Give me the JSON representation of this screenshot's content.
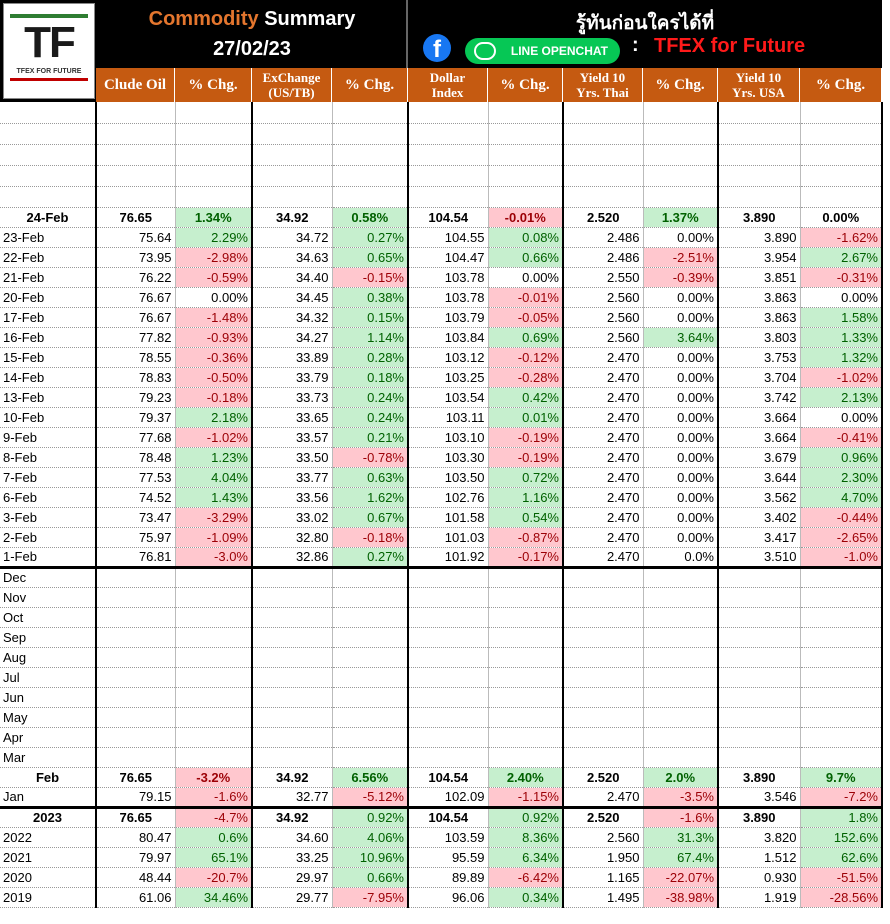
{
  "header": {
    "logo": "TF",
    "logo_caption": "TFEX FOR FUTURE",
    "title_part1": "Commodity",
    "title_part2": "Summary",
    "date": "27/02/23",
    "slogan": "รู้ทันก่อนใครได้ที่",
    "line_label": "LINE OPENCHAT",
    "colon": ":",
    "group_name": "TFEX for Future"
  },
  "columns": [
    [
      "Clude Oil"
    ],
    [
      "% Chg."
    ],
    [
      "ExChange",
      "(US/TB)"
    ],
    [
      "% Chg."
    ],
    [
      "Dollar",
      "Index"
    ],
    [
      "% Chg."
    ],
    [
      "Yield 10",
      "Yrs. Thai"
    ],
    [
      "% Chg."
    ],
    [
      "Yield 10",
      "Yrs. USA"
    ],
    [
      "% Chg."
    ]
  ],
  "daily": [
    {
      "label": "24-Feb",
      "values": [
        "76.65",
        "1.34%",
        "34.92",
        "0.58%",
        "104.54",
        "-0.01%",
        "2.520",
        "1.37%",
        "3.890",
        "0.00%"
      ]
    },
    {
      "label": "23-Feb",
      "values": [
        "75.64",
        "2.29%",
        "34.72",
        "0.27%",
        "104.55",
        "0.08%",
        "2.486",
        "0.00%",
        "3.890",
        "-1.62%"
      ]
    },
    {
      "label": "22-Feb",
      "values": [
        "73.95",
        "-2.98%",
        "34.63",
        "0.65%",
        "104.47",
        "0.66%",
        "2.486",
        "-2.51%",
        "3.954",
        "2.67%"
      ]
    },
    {
      "label": "21-Feb",
      "values": [
        "76.22",
        "-0.59%",
        "34.40",
        "-0.15%",
        "103.78",
        "0.00%",
        "2.550",
        "-0.39%",
        "3.851",
        "-0.31%"
      ]
    },
    {
      "label": "20-Feb",
      "values": [
        "76.67",
        "0.00%",
        "34.45",
        "0.38%",
        "103.78",
        "-0.01%",
        "2.560",
        "0.00%",
        "3.863",
        "0.00%"
      ]
    },
    {
      "label": "17-Feb",
      "values": [
        "76.67",
        "-1.48%",
        "34.32",
        "0.15%",
        "103.79",
        "-0.05%",
        "2.560",
        "0.00%",
        "3.863",
        "1.58%"
      ]
    },
    {
      "label": "16-Feb",
      "values": [
        "77.82",
        "-0.93%",
        "34.27",
        "1.14%",
        "103.84",
        "0.69%",
        "2.560",
        "3.64%",
        "3.803",
        "1.33%"
      ]
    },
    {
      "label": "15-Feb",
      "values": [
        "78.55",
        "-0.36%",
        "33.89",
        "0.28%",
        "103.12",
        "-0.12%",
        "2.470",
        "0.00%",
        "3.753",
        "1.32%"
      ]
    },
    {
      "label": "14-Feb",
      "values": [
        "78.83",
        "-0.50%",
        "33.79",
        "0.18%",
        "103.25",
        "-0.28%",
        "2.470",
        "0.00%",
        "3.704",
        "-1.02%"
      ]
    },
    {
      "label": "13-Feb",
      "values": [
        "79.23",
        "-0.18%",
        "33.73",
        "0.24%",
        "103.54",
        "0.42%",
        "2.470",
        "0.00%",
        "3.742",
        "2.13%"
      ]
    },
    {
      "label": "10-Feb",
      "values": [
        "79.37",
        "2.18%",
        "33.65",
        "0.24%",
        "103.11",
        "0.01%",
        "2.470",
        "0.00%",
        "3.664",
        "0.00%"
      ]
    },
    {
      "label": "9-Feb",
      "values": [
        "77.68",
        "-1.02%",
        "33.57",
        "0.21%",
        "103.10",
        "-0.19%",
        "2.470",
        "0.00%",
        "3.664",
        "-0.41%"
      ]
    },
    {
      "label": "8-Feb",
      "values": [
        "78.48",
        "1.23%",
        "33.50",
        "-0.78%",
        "103.30",
        "-0.19%",
        "2.470",
        "0.00%",
        "3.679",
        "0.96%"
      ]
    },
    {
      "label": "7-Feb",
      "values": [
        "77.53",
        "4.04%",
        "33.77",
        "0.63%",
        "103.50",
        "0.72%",
        "2.470",
        "0.00%",
        "3.644",
        "2.30%"
      ]
    },
    {
      "label": "6-Feb",
      "values": [
        "74.52",
        "1.43%",
        "33.56",
        "1.62%",
        "102.76",
        "1.16%",
        "2.470",
        "0.00%",
        "3.562",
        "4.70%"
      ]
    },
    {
      "label": "3-Feb",
      "values": [
        "73.47",
        "-3.29%",
        "33.02",
        "0.67%",
        "101.58",
        "0.54%",
        "2.470",
        "0.00%",
        "3.402",
        "-0.44%"
      ]
    },
    {
      "label": "2-Feb",
      "values": [
        "75.97",
        "-1.09%",
        "32.80",
        "-0.18%",
        "101.03",
        "-0.87%",
        "2.470",
        "0.00%",
        "3.417",
        "-2.65%"
      ]
    },
    {
      "label": "1-Feb",
      "values": [
        "76.81",
        "-3.0%",
        "32.86",
        "0.27%",
        "101.92",
        "-0.17%",
        "2.470",
        "0.0%",
        "3.510",
        "-1.0%"
      ]
    }
  ],
  "empty_months": [
    "Dec",
    "Nov",
    "Oct",
    "Sep",
    "Aug",
    "Jul",
    "Jun",
    "May",
    "Apr",
    "Mar"
  ],
  "monthly": [
    {
      "label": "Feb",
      "values": [
        "76.65",
        "-3.2%",
        "34.92",
        "6.56%",
        "104.54",
        "2.40%",
        "2.520",
        "2.0%",
        "3.890",
        "9.7%"
      ]
    },
    {
      "label": "Jan",
      "values": [
        "79.15",
        "-1.6%",
        "32.77",
        "-5.12%",
        "102.09",
        "-1.15%",
        "2.470",
        "-3.5%",
        "3.546",
        "-7.2%"
      ]
    }
  ],
  "yearly": [
    {
      "label": "2023",
      "values": [
        "76.65",
        "-4.7%",
        "34.92",
        "0.92%",
        "104.54",
        "0.92%",
        "2.520",
        "-1.6%",
        "3.890",
        "1.8%"
      ]
    },
    {
      "label": "2022",
      "values": [
        "80.47",
        "0.6%",
        "34.60",
        "4.06%",
        "103.59",
        "8.36%",
        "2.560",
        "31.3%",
        "3.820",
        "152.6%"
      ]
    },
    {
      "label": "2021",
      "values": [
        "79.97",
        "65.1%",
        "33.25",
        "10.96%",
        "95.59",
        "6.34%",
        "1.950",
        "67.4%",
        "1.512",
        "62.6%"
      ]
    },
    {
      "label": "2020",
      "values": [
        "48.44",
        "-20.7%",
        "29.97",
        "0.66%",
        "89.89",
        "-6.42%",
        "1.165",
        "-22.07%",
        "0.930",
        "-51.5%"
      ]
    },
    {
      "label": "2019",
      "values": [
        "61.06",
        "34.46%",
        "29.77",
        "-7.95%",
        "96.06",
        "0.34%",
        "1.495",
        "-38.98%",
        "1.919",
        "-28.56%"
      ]
    }
  ]
}
